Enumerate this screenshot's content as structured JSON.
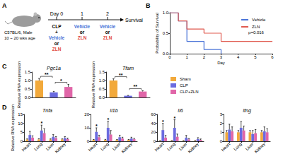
{
  "panel_labels": [
    "A",
    "B",
    "C",
    "D"
  ],
  "diagram": {
    "subject": [
      "C57BL/6, Male",
      "10 ~ 20 wks age"
    ],
    "days": [
      "Day 0",
      "1",
      "2"
    ],
    "treatments": [
      [
        "CLP",
        "+",
        "Vehicle",
        "or",
        "ZLN"
      ],
      [
        "Vehicle",
        "or",
        "ZLN"
      ],
      [
        "Vehicle",
        "or",
        "ZLN"
      ]
    ],
    "endpoint": "Survival",
    "colors": {
      "Vehicle": "#3f6fd6",
      "ZLN": "#e0483c"
    }
  },
  "chart_data": [
    {
      "type": "line",
      "x_label": "Day",
      "y_label": "Probability of Survival",
      "xlim": [
        0,
        6
      ],
      "xticks": [
        0,
        1,
        2,
        3,
        4,
        5,
        6
      ],
      "ylim": [
        0,
        1
      ],
      "yticks": [
        {
          "value": 0,
          "label": "0.0"
        },
        {
          "value": 0.5,
          "label": "0.5"
        },
        {
          "value": 1,
          "label": "1.0"
        }
      ],
      "line_style": "step",
      "legend": "upper right",
      "grid": false,
      "annotations": [
        "p=0.016"
      ],
      "series": [
        {
          "name": "Vehicle",
          "color": "#4a74d8",
          "x": [
            0,
            0.5,
            1,
            2,
            3
          ],
          "values": [
            1,
            0.8,
            0.3,
            0.1,
            0
          ]
        },
        {
          "name": "ZLN",
          "color": "#e05a4f",
          "x": [
            0,
            0.5,
            1,
            2,
            3,
            6
          ],
          "values": [
            1,
            0.8,
            0.6,
            0.5,
            0.3,
            0.3
          ]
        }
      ]
    },
    {
      "type": "bar",
      "title": "Pgc1a",
      "y_label": "Relative RNA expression",
      "categories": [
        "Sham",
        "CLP",
        "CLP+ZLN"
      ],
      "values": [
        1.0,
        0.3,
        0.62
      ],
      "errors": [
        0.12,
        0.06,
        0.15
      ],
      "colors": [
        "#f2a93b",
        "#6b6be0",
        "#e066a8"
      ],
      "ylim": [
        0,
        1.5
      ],
      "yticks": [
        {
          "value": 0,
          "label": "0.0"
        },
        {
          "value": 0.5,
          "label": "0.5"
        },
        {
          "value": 1,
          "label": "1.0"
        },
        {
          "value": 1.5,
          "label": "1.5"
        }
      ],
      "tick_labels": "y",
      "grid": false,
      "annotations": [
        {
          "text": "**",
          "between": [
            "Sham",
            "CLP"
          ]
        },
        {
          "text": "*",
          "between": [
            "CLP",
            "CLP+ZLN"
          ]
        }
      ]
    },
    {
      "type": "bar",
      "title": "Tfam",
      "y_label": "Relative RNA expression",
      "categories": [
        "Sham",
        "CLP",
        "CLP+ZLN"
      ],
      "values": [
        1.0,
        0.1,
        0.35
      ],
      "errors": [
        0.1,
        0.02,
        0.05
      ],
      "colors": [
        "#f2a93b",
        "#6b6be0",
        "#e066a8"
      ],
      "ylim": [
        0,
        1.5
      ],
      "yticks": [
        {
          "value": 0,
          "label": "0.0"
        },
        {
          "value": 0.5,
          "label": "0.5"
        },
        {
          "value": 1,
          "label": "1.0"
        },
        {
          "value": 1.5,
          "label": "1.5"
        }
      ],
      "tick_labels": "y",
      "grid": false,
      "annotations": [
        {
          "text": "**",
          "between": [
            "Sham",
            "CLP"
          ]
        },
        {
          "text": "**",
          "between": [
            "CLP",
            "CLP+ZLN"
          ]
        }
      ]
    },
    {
      "type": "bar",
      "title": "Tnfa",
      "y_label": "Relative RNA expression",
      "legend": "right",
      "grid": false,
      "categories": [
        "Heart",
        "Lung",
        "Liver",
        "Kidney"
      ],
      "ylim": [
        0,
        15
      ],
      "yticks": [
        0,
        5,
        10,
        15
      ],
      "series": [
        {
          "name": "Sham",
          "color": "#f2a93b",
          "values": [
            1,
            1,
            1,
            1
          ],
          "errors": [
            0.3,
            0.4,
            0.3,
            0.3
          ]
        },
        {
          "name": "CLP",
          "color": "#6b6be0",
          "values": [
            3.5,
            6,
            2.5,
            1.8
          ],
          "errors": [
            2,
            3,
            1.2,
            0.8
          ]
        },
        {
          "name": "CLP+ZLN",
          "color": "#e066a8",
          "values": [
            2,
            4.5,
            1.8,
            1.2
          ],
          "errors": [
            1,
            2.5,
            0.8,
            0.5
          ]
        }
      ],
      "annotations": [
        {
          "text": "*",
          "category": "Lung"
        }
      ]
    },
    {
      "type": "bar",
      "title": "Il1b",
      "grid": false,
      "categories": [
        "Heart",
        "Lung",
        "Liver",
        "Kidney"
      ],
      "ylim": [
        0,
        20
      ],
      "yticks": [
        0,
        10,
        20
      ],
      "series": [
        {
          "name": "Sham",
          "color": "#f2a93b",
          "values": [
            1,
            1,
            1,
            1
          ],
          "errors": [
            0.3,
            0.4,
            0.3,
            0.3
          ]
        },
        {
          "name": "CLP",
          "color": "#6b6be0",
          "values": [
            7,
            10,
            3,
            2
          ],
          "errors": [
            3,
            5,
            1.5,
            1
          ]
        },
        {
          "name": "CLP+ZLN",
          "color": "#e066a8",
          "values": [
            3,
            5,
            2,
            1.5
          ],
          "errors": [
            1.5,
            3,
            1,
            0.6
          ]
        }
      ],
      "annotations": [
        {
          "text": "*",
          "category": "Heart"
        },
        {
          "text": "*",
          "category": "Lung"
        }
      ]
    },
    {
      "type": "bar",
      "title": "Il6",
      "grid": false,
      "categories": [
        "Heart",
        "Lung",
        "Liver",
        "Kidney"
      ],
      "ylim": [
        0,
        60
      ],
      "yticks": [
        0,
        20,
        40,
        60
      ],
      "series": [
        {
          "name": "Sham",
          "color": "#f2a93b",
          "values": [
            1,
            1,
            1,
            1
          ],
          "errors": [
            0.5,
            0.6,
            0.5,
            0.5
          ]
        },
        {
          "name": "CLP",
          "color": "#6b6be0",
          "values": [
            25,
            30,
            8,
            5
          ],
          "errors": [
            15,
            18,
            5,
            3
          ]
        },
        {
          "name": "CLP+ZLN",
          "color": "#e066a8",
          "values": [
            8,
            10,
            4,
            3
          ],
          "errors": [
            5,
            6,
            2,
            2
          ]
        }
      ],
      "annotations": [
        {
          "text": "*",
          "category": "Heart"
        },
        {
          "text": "*",
          "category": "Lung"
        }
      ]
    },
    {
      "type": "bar",
      "title": "Ifng",
      "grid": false,
      "categories": [
        "Heart",
        "Lung",
        "Liver",
        "Kidney"
      ],
      "ylim": [
        0,
        3
      ],
      "yticks": [
        0,
        1,
        2,
        3
      ],
      "series": [
        {
          "name": "Sham",
          "color": "#f2a93b",
          "values": [
            1,
            1,
            1,
            1
          ],
          "errors": [
            0.2,
            0.2,
            0.2,
            0.2
          ]
        },
        {
          "name": "CLP",
          "color": "#6b6be0",
          "values": [
            1.3,
            1.5,
            0.8,
            1.1
          ],
          "errors": [
            0.6,
            0.7,
            0.4,
            0.5
          ]
        },
        {
          "name": "CLP+ZLN",
          "color": "#e066a8",
          "values": [
            1.1,
            1.2,
            0.9,
            1
          ],
          "errors": [
            0.5,
            0.5,
            0.4,
            0.4
          ]
        }
      ],
      "annotations": []
    }
  ]
}
